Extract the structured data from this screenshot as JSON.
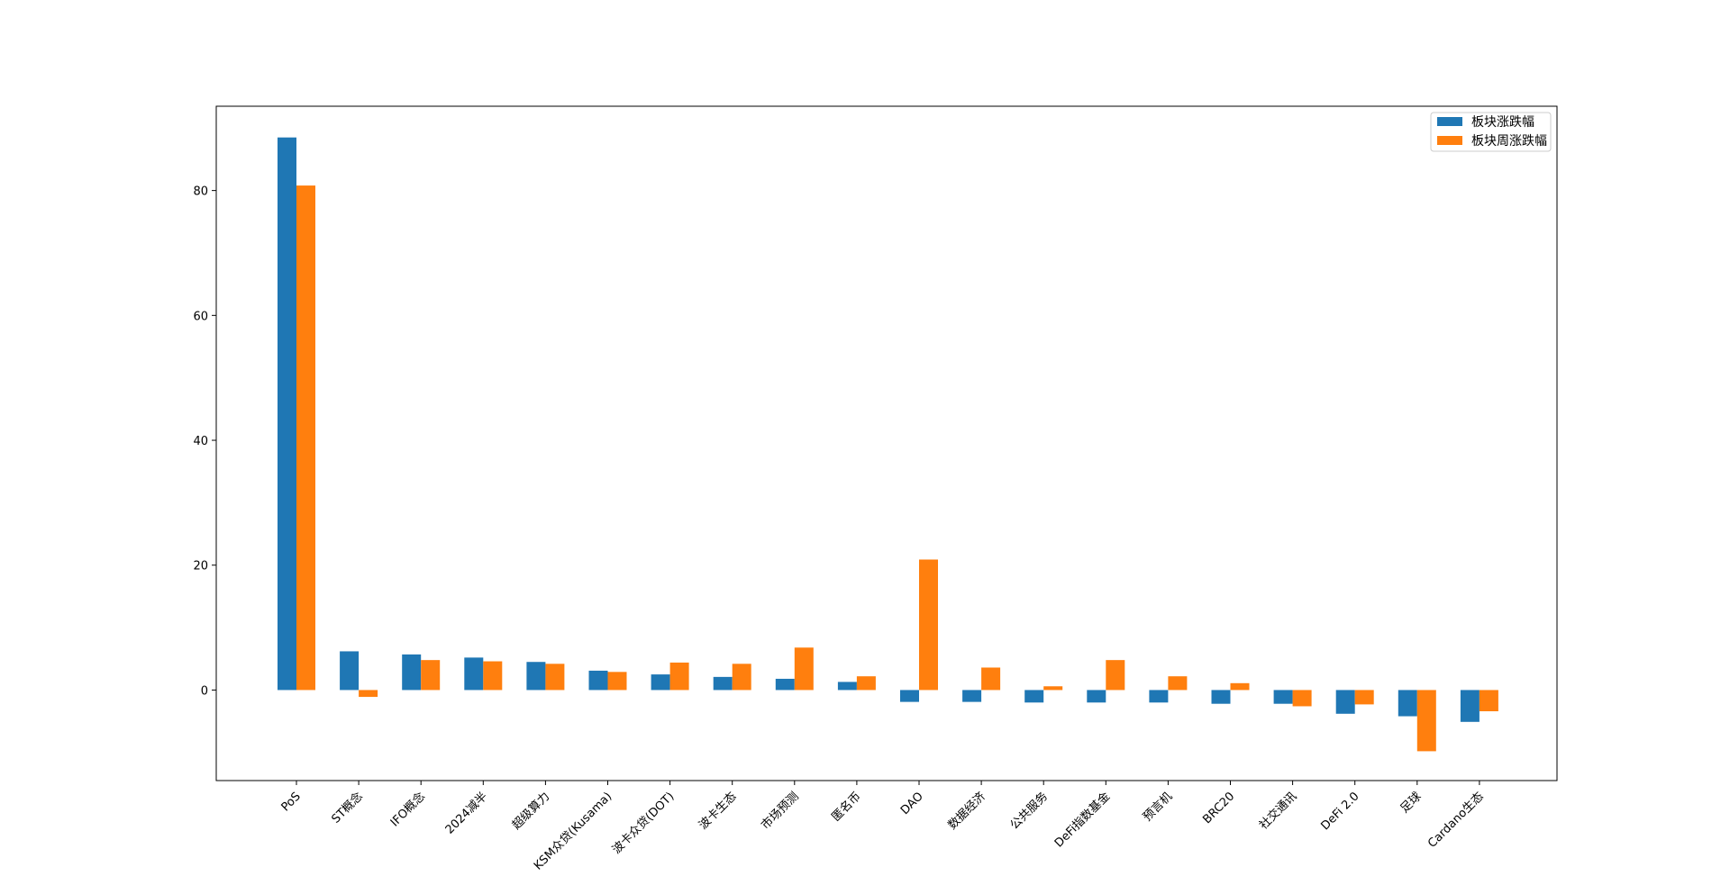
{
  "chart_data": {
    "type": "bar",
    "title": "",
    "xlabel": "",
    "ylabel": "",
    "ylim": [
      -14.5,
      93.5
    ],
    "yticks": [
      0,
      20,
      40,
      60,
      80
    ],
    "grid": false,
    "legend_position": "top-right",
    "categories": [
      "PoS",
      "ST概念",
      "IFO概念",
      "2024减半",
      "超级算力",
      "KSM众贷(Kusama)",
      "波卡众贷(DOT)",
      "波卡生态",
      "市场预测",
      "匿名币",
      "DAO",
      "数据经济",
      "公共服务",
      "DeFi指数基金",
      "预言机",
      "BRC20",
      "社交通讯",
      "DeFi 2.0",
      "足球",
      "Cardano生态"
    ],
    "series": [
      {
        "name": "板块涨跌幅",
        "color": "#1f77b4",
        "values": [
          88.5,
          6.2,
          5.7,
          5.2,
          4.5,
          3.1,
          2.5,
          2.1,
          1.8,
          1.3,
          -1.9,
          -1.9,
          -2.0,
          -2.0,
          -2.0,
          -2.2,
          -2.2,
          -3.8,
          -4.2,
          -5.1
        ]
      },
      {
        "name": "板块周涨跌幅",
        "color": "#ff7f0e",
        "values": [
          80.8,
          -1.1,
          4.8,
          4.6,
          4.2,
          2.9,
          4.4,
          4.2,
          6.8,
          2.2,
          20.9,
          3.6,
          0.6,
          4.8,
          2.2,
          1.1,
          -2.6,
          -2.3,
          -9.8,
          -3.4
        ]
      }
    ]
  }
}
